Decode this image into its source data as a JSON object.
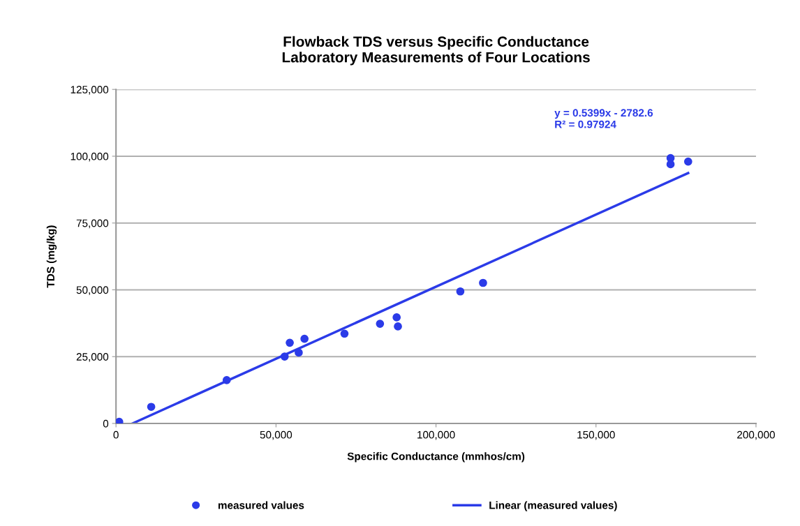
{
  "chart_data": {
    "type": "scatter",
    "title": "Flowback TDS versus Specific Conductance\nLaboratory Measurements of Four Locations",
    "xlabel": "Specific Conductance (mmhos/cm)",
    "ylabel": "TDS (mg/kg)",
    "xlim": [
      0,
      200000
    ],
    "xticks": [
      {
        "value": 0,
        "label": "0"
      },
      {
        "value": 50000,
        "label": "50,000"
      },
      {
        "value": 100000,
        "label": "100,000"
      },
      {
        "value": 150000,
        "label": "150,000"
      },
      {
        "value": 200000,
        "label": "200,000"
      }
    ],
    "ylim": [
      0,
      125000
    ],
    "yticks": [
      {
        "value": 0,
        "label": "0"
      },
      {
        "value": 25000,
        "label": "25,000"
      },
      {
        "value": 50000,
        "label": "50,000"
      },
      {
        "value": 75000,
        "label": "75,000"
      },
      {
        "value": 100000,
        "label": "100,000"
      },
      {
        "value": 125000,
        "label": "125,000"
      }
    ],
    "grid": "y",
    "legend": "bottom",
    "marker": "circle",
    "series": [
      {
        "name": "measured values",
        "color": "#2b3be8",
        "x": [
          1000,
          11000,
          34600,
          52700,
          54300,
          57100,
          58900,
          71400,
          82500,
          87700,
          88100,
          107600,
          114700,
          173300,
          173300,
          178800
        ],
        "values": [
          600,
          6200,
          16200,
          25000,
          30200,
          26500,
          31700,
          33600,
          37300,
          39700,
          36300,
          49400,
          52600,
          99300,
          97000,
          98000
        ]
      },
      {
        "name": "Linear (measured values)",
        "type": "line",
        "marker": "none",
        "color": "#2b3be8",
        "x": [
          5150,
          178800
        ],
        "values": [
          0,
          93700
        ]
      }
    ],
    "annotations": [
      "y = 0.5399x - 2782.6\nR² = 0.97924"
    ]
  }
}
